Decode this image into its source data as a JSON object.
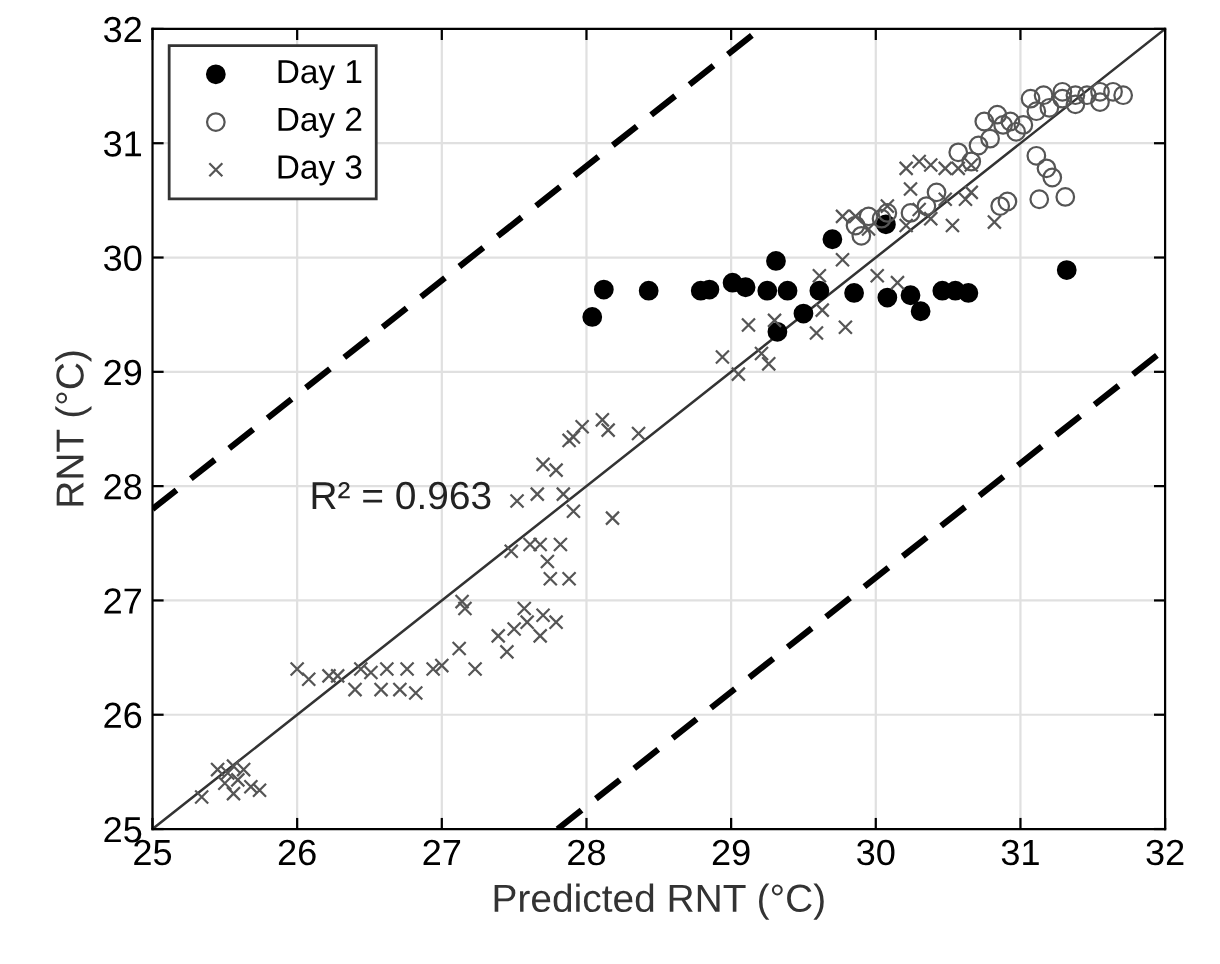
{
  "chart_data": {
    "type": "scatter",
    "xlabel": "Predicted RNT (°C)",
    "ylabel": "RNT (°C)",
    "xlim": [
      25,
      32
    ],
    "ylim": [
      25,
      32
    ],
    "xticks": [
      25,
      26,
      27,
      28,
      29,
      30,
      31,
      32
    ],
    "yticks": [
      25,
      26,
      27,
      28,
      29,
      30,
      31,
      32
    ],
    "grid": true,
    "legend": "top left",
    "annotations": [
      "R² = 0.963"
    ],
    "series": [
      {
        "name": "Day 1",
        "marker": "circle",
        "color": "#000000",
        "x": [
          28.04,
          28.12,
          28.43,
          28.79,
          28.85,
          29.01,
          29.1,
          29.25,
          29.31,
          29.32,
          29.39,
          29.5,
          29.61,
          29.7,
          29.85,
          30.07,
          30.08,
          30.24,
          30.31,
          30.46,
          30.55,
          30.64,
          31.32
        ],
        "values": [
          29.48,
          29.72,
          29.71,
          29.71,
          29.72,
          29.78,
          29.74,
          29.71,
          29.97,
          29.35,
          29.71,
          29.51,
          29.71,
          30.16,
          29.69,
          30.29,
          29.65,
          29.67,
          29.53,
          29.71,
          29.71,
          29.69,
          29.89
        ]
      },
      {
        "name": "Day 2",
        "marker": "circle",
        "color": "#555555",
        "x": [
          30.75,
          30.84,
          30.93,
          31.02,
          31.11,
          31.2,
          31.29,
          31.38,
          31.46,
          31.55,
          31.64,
          31.71,
          31.16,
          31.07,
          31.38,
          31.55,
          30.88,
          30.97,
          30.79,
          31.11,
          31.18,
          31.22,
          31.31,
          31.13,
          30.91,
          30.86,
          30.71,
          30.57,
          30.35,
          30.24,
          30.08,
          29.95,
          29.86,
          29.9,
          30.04,
          30.42,
          30.66,
          31.29
        ],
        "values": [
          31.19,
          31.25,
          31.19,
          31.16,
          31.28,
          31.31,
          31.39,
          31.42,
          31.42,
          31.45,
          31.45,
          31.42,
          31.42,
          31.39,
          31.34,
          31.36,
          31.16,
          31.1,
          31.04,
          30.89,
          30.78,
          30.7,
          30.53,
          30.51,
          30.49,
          30.45,
          30.98,
          30.92,
          30.45,
          30.39,
          30.39,
          30.36,
          30.28,
          30.19,
          30.34,
          30.57,
          30.84,
          31.45
        ]
      },
      {
        "name": "Day 3",
        "marker": "cross",
        "color": "#555555",
        "x": [
          25.34,
          25.45,
          25.52,
          25.56,
          25.59,
          25.63,
          25.56,
          25.68,
          25.74,
          25.5,
          26.0,
          26.08,
          26.22,
          26.28,
          26.4,
          26.44,
          26.51,
          26.58,
          26.62,
          26.71,
          26.76,
          26.82,
          26.94,
          27.0,
          27.12,
          27.14,
          27.16,
          27.23,
          27.39,
          27.45,
          27.5,
          27.57,
          27.59,
          27.68,
          27.7,
          27.79,
          27.48,
          27.61,
          27.68,
          27.82,
          27.73,
          27.75,
          27.88,
          27.52,
          27.66,
          27.7,
          27.79,
          27.84,
          27.91,
          27.88,
          27.97,
          28.11,
          28.15,
          28.36,
          28.18,
          27.91,
          28.94,
          29.05,
          29.12,
          29.21,
          29.26,
          29.3,
          29.59,
          29.61,
          29.79,
          29.77,
          30.01,
          30.15,
          29.77,
          29.86,
          29.95,
          30.08,
          30.21,
          30.3,
          30.38,
          30.53,
          30.48,
          30.62,
          30.66,
          30.21,
          30.3,
          30.38,
          30.48,
          30.57,
          30.66,
          30.24,
          30.82,
          29.63
        ],
        "values": [
          25.28,
          25.52,
          25.49,
          25.55,
          25.43,
          25.52,
          25.31,
          25.37,
          25.34,
          25.4,
          26.4,
          26.31,
          26.34,
          26.34,
          26.22,
          26.4,
          26.37,
          26.22,
          26.4,
          26.22,
          26.4,
          26.19,
          26.4,
          26.43,
          26.58,
          26.99,
          26.93,
          26.4,
          26.69,
          26.55,
          26.75,
          26.93,
          26.81,
          26.69,
          26.87,
          26.81,
          27.43,
          27.49,
          27.49,
          27.49,
          27.34,
          27.19,
          27.19,
          27.87,
          27.93,
          28.19,
          28.14,
          27.93,
          27.78,
          28.4,
          28.52,
          28.58,
          28.49,
          28.46,
          27.72,
          28.43,
          29.13,
          28.98,
          29.41,
          29.16,
          29.07,
          29.45,
          29.34,
          29.84,
          29.39,
          29.98,
          29.84,
          29.78,
          30.36,
          30.36,
          30.25,
          30.45,
          30.28,
          30.42,
          30.34,
          30.28,
          30.51,
          30.51,
          30.57,
          30.78,
          30.84,
          30.81,
          30.78,
          30.78,
          30.81,
          30.6,
          30.31,
          29.54
        ]
      },
      {
        "type": "line",
        "line_style": "solid",
        "color": "#333333",
        "x": [
          25,
          32
        ],
        "values": [
          25,
          32
        ]
      },
      {
        "type": "line",
        "line_style": "dashed",
        "color": "#000000",
        "x": [
          25,
          29.2
        ],
        "values": [
          27.8,
          32
        ]
      },
      {
        "type": "line",
        "line_style": "dashed",
        "color": "#000000",
        "x": [
          27.8,
          32
        ],
        "values": [
          25,
          29.2
        ]
      }
    ]
  }
}
